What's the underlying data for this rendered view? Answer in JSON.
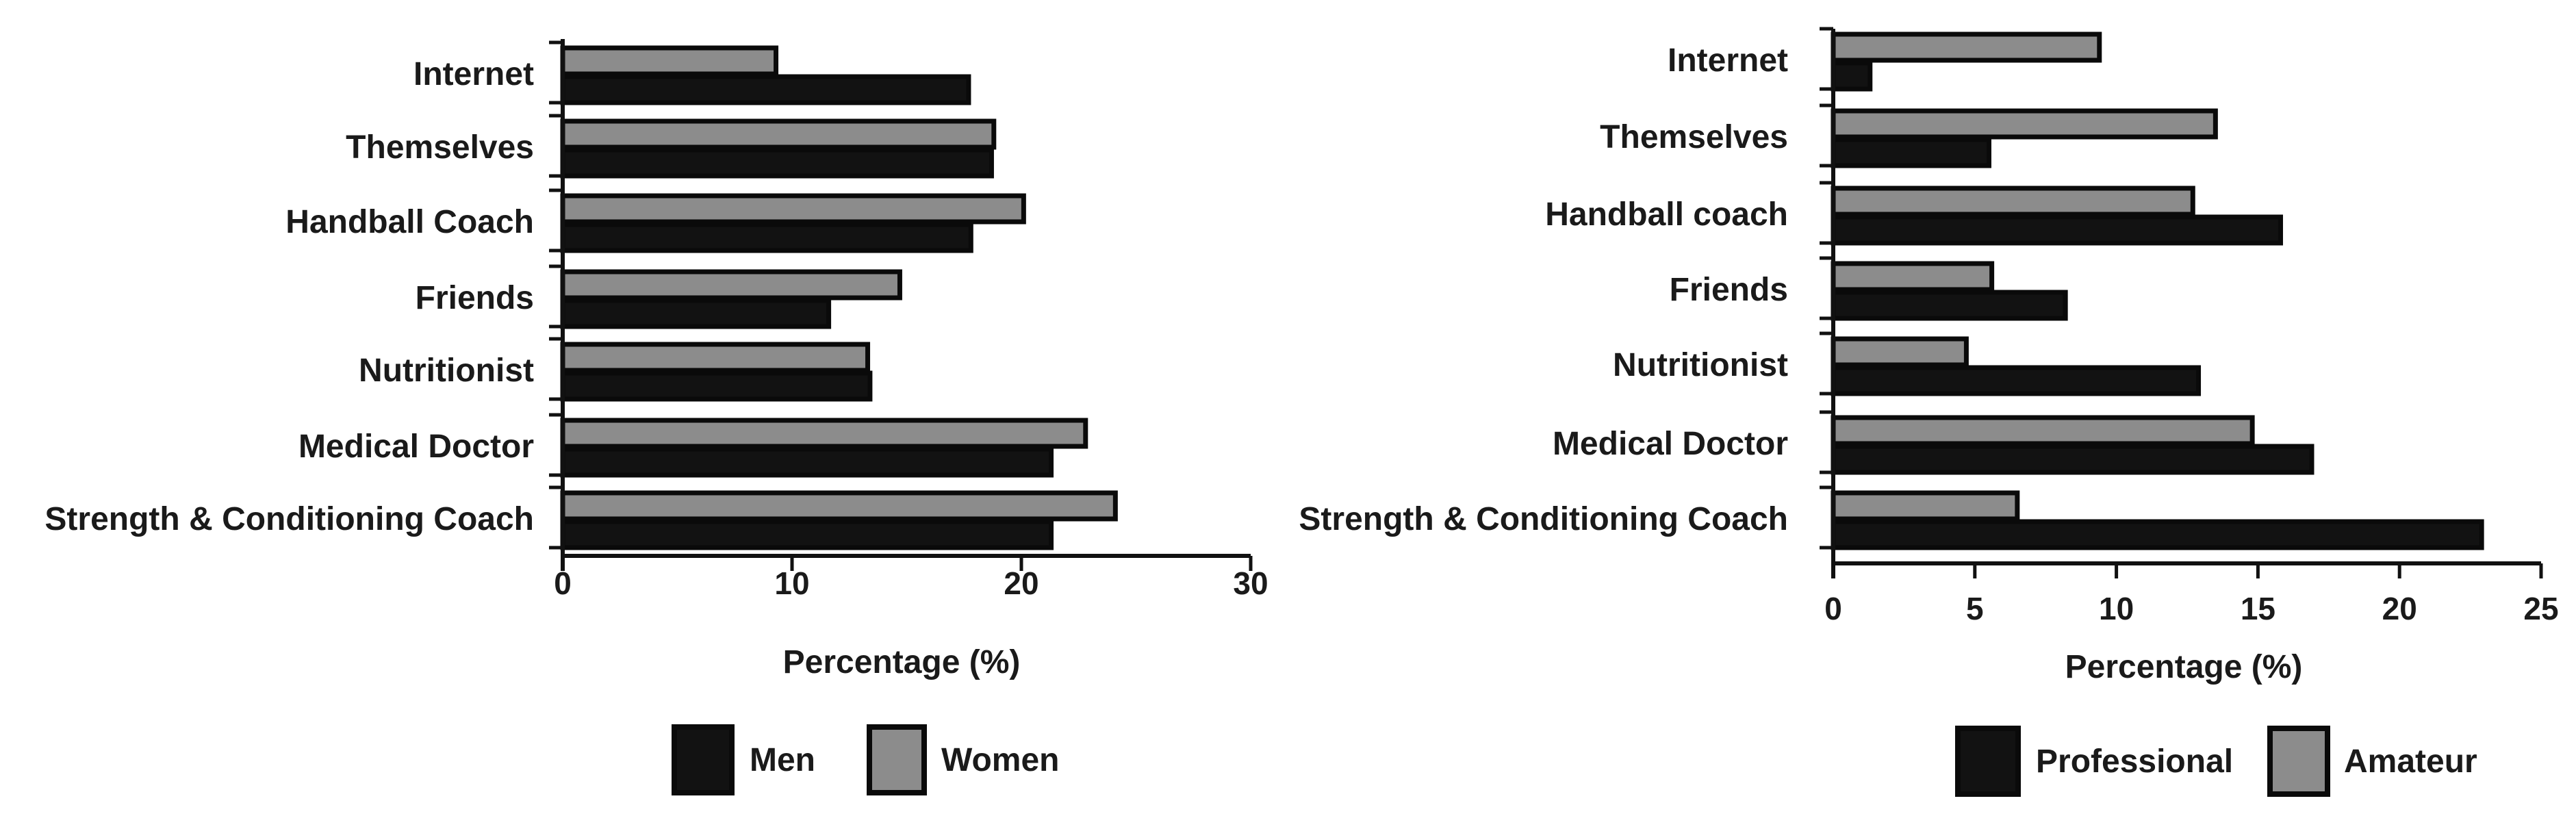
{
  "chart_data": [
    {
      "type": "bar",
      "orientation": "horizontal",
      "categories": [
        "Internet",
        "Themselves",
        "Handball Coach",
        "Friends",
        "Nutritionist",
        "Medical  Doctor",
        "Strength & Conditioning Coach"
      ],
      "series": [
        {
          "name": "Men",
          "color": "#121212",
          "values": [
            17.7,
            18.7,
            17.8,
            11.6,
            13.4,
            21.3,
            21.3
          ]
        },
        {
          "name": "Women",
          "color": "#8c8c8c",
          "values": [
            9.3,
            18.8,
            20.1,
            14.7,
            13.3,
            22.8,
            24.1
          ]
        }
      ],
      "xlabel": "Percentage (%)",
      "xlim": [
        0,
        30
      ],
      "xticks": [
        0,
        10,
        20,
        30
      ],
      "grid": false,
      "legend_position": "bottom"
    },
    {
      "type": "bar",
      "orientation": "horizontal",
      "categories": [
        "Internet",
        "Themselves",
        "Handball coach",
        "Friends",
        "Nutritionist",
        "Medical Doctor",
        "Strength & Conditioning Coach"
      ],
      "series": [
        {
          "name": "Professional",
          "color": "#121212",
          "values": [
            1.3,
            5.5,
            15.8,
            8.2,
            12.9,
            16.9,
            22.9
          ]
        },
        {
          "name": "Amateur",
          "color": "#8c8c8c",
          "values": [
            9.4,
            13.5,
            12.7,
            5.6,
            4.7,
            14.8,
            6.5
          ]
        }
      ],
      "xlabel": "Percentage (%)",
      "xlim": [
        0,
        25
      ],
      "xticks": [
        0,
        5,
        10,
        15,
        20,
        25
      ],
      "grid": false,
      "legend_position": "bottom"
    }
  ]
}
